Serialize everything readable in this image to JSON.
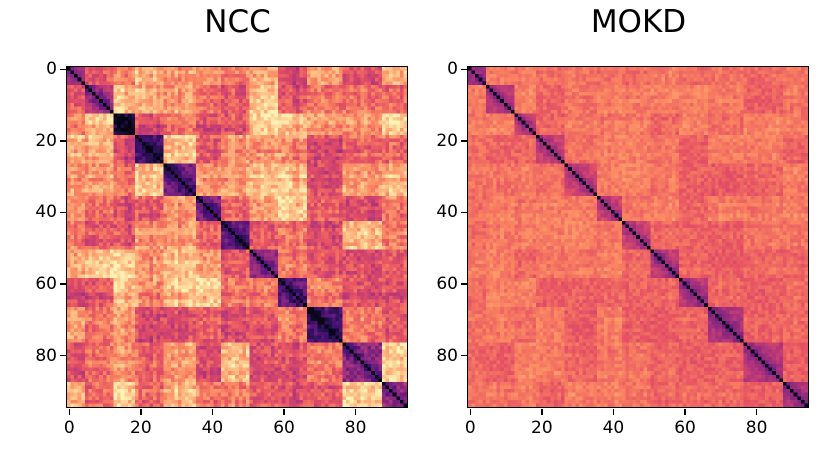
{
  "figure": {
    "background": "#ffffff",
    "text_color": "#000000"
  },
  "chart_data": [
    {
      "type": "heatmap",
      "title": "NCC",
      "n": 95,
      "x_ticks": [
        0,
        20,
        40,
        60,
        80
      ],
      "y_ticks": [
        0,
        20,
        40,
        60,
        80
      ],
      "value_range": [
        0,
        1
      ],
      "colormap": "magma reversed (low values = light cream/orange, high values = dark purple/black)",
      "colormap_anchors": [
        "#000004",
        "#1a1042",
        "#4f127b",
        "#812581",
        "#b73779",
        "#e55064",
        "#fb8761",
        "#fec287",
        "#fcfdbf"
      ],
      "diagonal_value": 0.97,
      "base_offdiag_value": 0.24,
      "cluster_value": 0.62,
      "noise": 0.09,
      "block_contrast": 0.16,
      "row_stripe_strength": 0.16,
      "cluster_boundaries": [
        0,
        5,
        13,
        19,
        27,
        36,
        43,
        51,
        59,
        67,
        77,
        88,
        95
      ],
      "seed": 7,
      "description": "Pairwise similarity matrix with strong block/cluster structure: dark purple diagonal blocks, patchy orange and cream off-diagonal regions."
    },
    {
      "type": "heatmap",
      "title": "MOKD",
      "n": 95,
      "x_ticks": [
        0,
        20,
        40,
        60,
        80
      ],
      "y_ticks": [
        0,
        20,
        40,
        60,
        80
      ],
      "value_range": [
        0,
        1
      ],
      "colormap": "magma reversed (low values = light cream/orange, high values = dark purple/black)",
      "colormap_anchors": [
        "#000004",
        "#1a1042",
        "#4f127b",
        "#812581",
        "#b73779",
        "#e55064",
        "#fb8761",
        "#fec287",
        "#fcfdbf"
      ],
      "diagonal_value": 0.95,
      "base_offdiag_value": 0.3,
      "cluster_value": 0.46,
      "noise": 0.05,
      "block_contrast": 0.045,
      "row_stripe_strength": 0.05,
      "cluster_boundaries": [
        0,
        5,
        13,
        19,
        27,
        36,
        43,
        51,
        59,
        67,
        77,
        88,
        95
      ],
      "seed": 13,
      "description": "Mostly uniform orange similarity matrix with a thin dark diagonal and small, faint darker cluster blocks along the diagonal."
    }
  ]
}
